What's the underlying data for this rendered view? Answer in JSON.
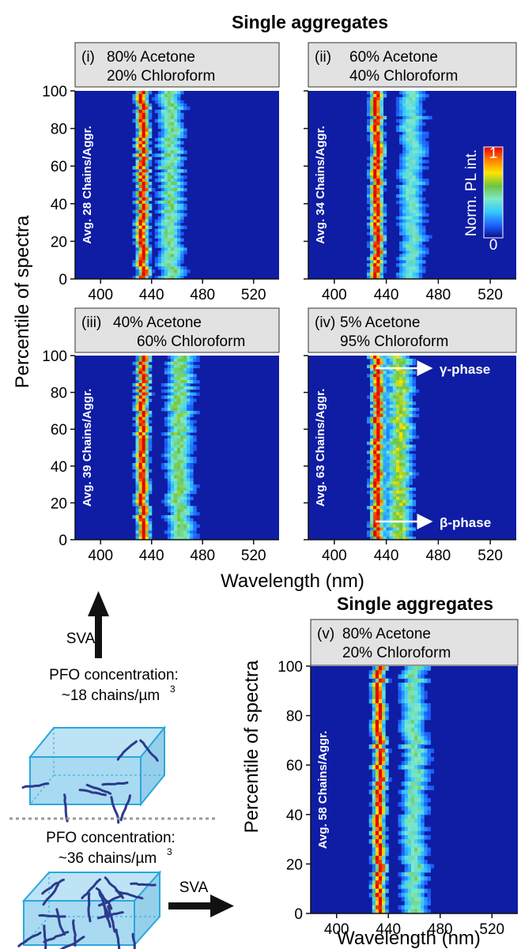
{
  "figure": {
    "title_top": "Single aggregates",
    "title_bottom": "Single aggregates",
    "y_label": "Percentile of spectra",
    "x_label": "Wavelength (nm)",
    "colorbar": {
      "label": "Norm. PL int.",
      "max_label": "1",
      "min_label": "0",
      "colors": [
        "#0a0a8c",
        "#1e64ff",
        "#34c8ff",
        "#7ee8c8",
        "#6cc440",
        "#ffe600",
        "#ff8000",
        "#e60000"
      ]
    },
    "sva_label_1": "SVA",
    "sva_label_2": "SVA",
    "conc_1": {
      "line1": "PFO concentration:",
      "line2": "~18 chains/µm",
      "sup": "3"
    },
    "conc_2": {
      "line1": "PFO concentration:",
      "line2": "~36 chains/µm",
      "sup": "3"
    },
    "phase_labels": {
      "gamma": "γ-phase",
      "beta": "β-phase"
    }
  },
  "chart_data": [
    {
      "type": "heatmap",
      "panel": "(i)",
      "line1": "80% Acetone",
      "line2": "20% Chloroform",
      "avg_label": "Avg. 28 Chains/Aggr.",
      "xlabel": "Wavelength (nm)",
      "ylabel": "Percentile of spectra",
      "xlim": [
        380,
        540
      ],
      "ylim": [
        0,
        100
      ],
      "xticks": [
        400,
        440,
        480,
        520
      ],
      "yticks": [
        0,
        20,
        40,
        60,
        80,
        100
      ],
      "bands": [
        {
          "center_nm": 433,
          "rel_intensity": 1.0
        },
        {
          "center_nm": 455,
          "rel_intensity": 0.55
        }
      ]
    },
    {
      "type": "heatmap",
      "panel": "(ii)",
      "line1": "60% Acetone",
      "line2": "40% Chloroform",
      "avg_label": "Avg. 34 Chains/Aggr.",
      "xlim": [
        380,
        540
      ],
      "ylim": [
        0,
        100
      ],
      "xticks": [
        400,
        440,
        480,
        520
      ],
      "yticks": [
        0,
        20,
        40,
        60,
        80,
        100
      ],
      "bands": [
        {
          "center_nm": 433,
          "rel_intensity": 1.0
        },
        {
          "center_nm": 460,
          "rel_intensity": 0.45
        }
      ]
    },
    {
      "type": "heatmap",
      "panel": "(iii)",
      "line1": "40% Acetone",
      "line2": "60% Chloroform",
      "avg_label": "Avg. 39 Chains/Aggr.",
      "xlim": [
        380,
        540
      ],
      "ylim": [
        0,
        100
      ],
      "xticks": [
        400,
        440,
        480,
        520
      ],
      "yticks": [
        0,
        20,
        40,
        60,
        80,
        100
      ],
      "bands": [
        {
          "center_nm": 433,
          "rel_intensity": 1.0
        },
        {
          "center_nm": 462,
          "rel_intensity": 0.6
        }
      ]
    },
    {
      "type": "heatmap",
      "panel": "(iv)",
      "line1": "5% Acetone",
      "line2": "95% Chloroform",
      "avg_label": "Avg. 63 Chains/Aggr.",
      "xlim": [
        380,
        540
      ],
      "ylim": [
        0,
        100
      ],
      "xticks": [
        400,
        440,
        480,
        520
      ],
      "yticks": [
        0,
        20,
        40,
        60,
        80,
        100
      ],
      "bands": [
        {
          "center_nm": 433,
          "rel_intensity": 1.0
        },
        {
          "center_nm": 450,
          "rel_intensity": 0.7
        }
      ]
    },
    {
      "type": "heatmap",
      "panel": "(v)",
      "line1": "80% Acetone",
      "line2": "20% Chloroform",
      "avg_label": "Avg. 58 Chains/Aggr.",
      "xlabel": "Wavelength (nm)",
      "ylabel": "Percentile of spectra",
      "xlim": [
        380,
        540
      ],
      "ylim": [
        0,
        100
      ],
      "xticks": [
        400,
        440,
        480,
        520
      ],
      "yticks": [
        0,
        20,
        40,
        60,
        80,
        100
      ],
      "bands": [
        {
          "center_nm": 433,
          "rel_intensity": 1.0
        },
        {
          "center_nm": 460,
          "rel_intensity": 0.5
        }
      ]
    }
  ]
}
